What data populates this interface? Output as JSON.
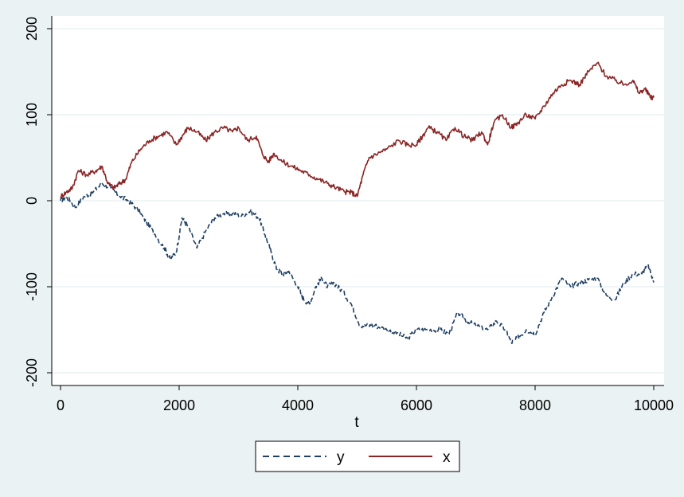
{
  "chart_data": {
    "type": "line",
    "xlabel": "t",
    "ylabel": "",
    "title": "",
    "xlim": [
      0,
      10000
    ],
    "ylim": [
      -200,
      200
    ],
    "xticks": [
      0,
      2000,
      4000,
      6000,
      8000,
      10000
    ],
    "yticks": [
      -200,
      -100,
      0,
      100,
      200
    ],
    "xtick_labels": [
      "0",
      "2000",
      "4000",
      "6000",
      "8000",
      "10000"
    ],
    "ytick_labels": [
      "-200",
      "-100",
      "0",
      "100",
      "200"
    ],
    "grid": "horizontal",
    "legend": "bottom-center",
    "series": [
      {
        "name": "y",
        "color": "#1f3f63",
        "dash": "dashed",
        "x": [
          0,
          100,
          250,
          400,
          550,
          700,
          850,
          1000,
          1150,
          1300,
          1450,
          1600,
          1750,
          1850,
          1950,
          2050,
          2150,
          2300,
          2450,
          2600,
          2750,
          2900,
          3050,
          3200,
          3350,
          3450,
          3550,
          3650,
          3750,
          3850,
          4000,
          4100,
          4200,
          4300,
          4400,
          4500,
          4600,
          4750,
          4900,
          5050,
          5200,
          5300,
          5500,
          5700,
          5850,
          6000,
          6200,
          6400,
          6550,
          6700,
          6850,
          7000,
          7200,
          7350,
          7500,
          7600,
          7700,
          7850,
          8000,
          8150,
          8300,
          8450,
          8600,
          8750,
          8900,
          9050,
          9200,
          9350,
          9500,
          9650,
          9800,
          9900,
          10000
        ],
        "values": [
          0,
          5,
          -8,
          5,
          10,
          20,
          15,
          5,
          0,
          -10,
          -25,
          -40,
          -55,
          -68,
          -60,
          -20,
          -30,
          -55,
          -35,
          -20,
          -15,
          -15,
          -18,
          -12,
          -20,
          -40,
          -60,
          -80,
          -85,
          -82,
          -100,
          -115,
          -120,
          -100,
          -90,
          -100,
          -95,
          -105,
          -120,
          -145,
          -145,
          -145,
          -150,
          -155,
          -160,
          -150,
          -150,
          -150,
          -155,
          -130,
          -140,
          -145,
          -150,
          -140,
          -150,
          -165,
          -160,
          -150,
          -155,
          -130,
          -110,
          -90,
          -100,
          -95,
          -92,
          -90,
          -110,
          -115,
          -95,
          -85,
          -85,
          -75,
          -95
        ]
      },
      {
        "name": "x",
        "color": "#8b2525",
        "dash": "solid",
        "x": [
          0,
          100,
          200,
          300,
          450,
          600,
          700,
          800,
          900,
          1000,
          1100,
          1200,
          1350,
          1500,
          1650,
          1800,
          1950,
          2050,
          2150,
          2300,
          2450,
          2600,
          2750,
          2900,
          3000,
          3150,
          3300,
          3400,
          3500,
          3600,
          3750,
          3900,
          4050,
          4200,
          4350,
          4500,
          4650,
          4800,
          4900,
          5000,
          5100,
          5200,
          5350,
          5500,
          5700,
          5850,
          6000,
          6100,
          6200,
          6350,
          6500,
          6650,
          6800,
          6950,
          7100,
          7200,
          7300,
          7450,
          7600,
          7700,
          7850,
          8000,
          8150,
          8300,
          8450,
          8600,
          8750,
          8900,
          9050,
          9200,
          9350,
          9500,
          9650,
          9750,
          9850,
          9950,
          10000
        ],
        "values": [
          5,
          10,
          15,
          35,
          30,
          35,
          40,
          20,
          15,
          20,
          25,
          45,
          60,
          70,
          75,
          80,
          65,
          75,
          85,
          80,
          70,
          80,
          85,
          80,
          85,
          70,
          75,
          55,
          45,
          55,
          45,
          40,
          35,
          30,
          25,
          20,
          15,
          10,
          10,
          5,
          30,
          50,
          55,
          60,
          70,
          65,
          65,
          75,
          85,
          80,
          70,
          85,
          75,
          70,
          80,
          65,
          90,
          100,
          85,
          90,
          100,
          95,
          110,
          125,
          135,
          140,
          135,
          150,
          160,
          145,
          140,
          135,
          140,
          125,
          130,
          120,
          120
        ]
      }
    ]
  }
}
